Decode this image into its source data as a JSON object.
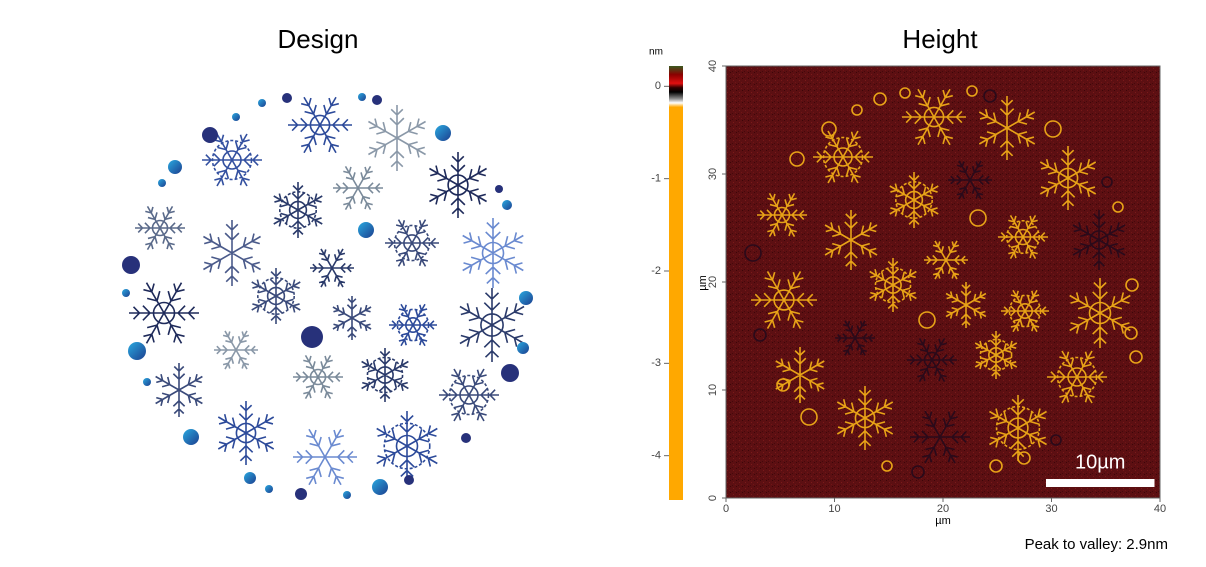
{
  "design": {
    "title": "Design"
  },
  "height": {
    "title": "Height",
    "colorbar": {
      "label": "nm",
      "ylim": [
        -4.48,
        0.22
      ],
      "yticks": [
        0,
        -1,
        -2,
        -3,
        -4
      ]
    },
    "image": {
      "xlabel": "µm",
      "ylabel": "µm",
      "xlim": [
        0,
        40
      ],
      "ylim": [
        0,
        40
      ],
      "xticks": [
        0,
        10,
        20,
        30,
        40
      ],
      "yticks": [
        0,
        10,
        20,
        30,
        40
      ],
      "scale_bar": {
        "label": "10µm",
        "length": 10
      }
    }
  },
  "caption": "Peak to valley: 2.9nm"
}
